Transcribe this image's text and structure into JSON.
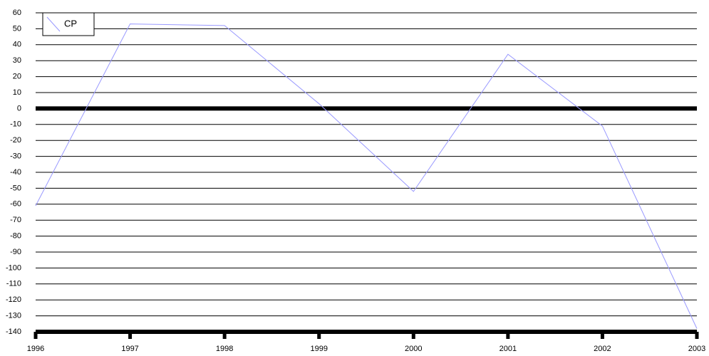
{
  "chart_data": {
    "type": "line",
    "x": [
      1996,
      1997,
      1998,
      1999,
      2000,
      2001,
      2002,
      2003
    ],
    "series": [
      {
        "name": "CP",
        "color": "#9999ff",
        "values": [
          -61,
          53,
          52,
          3,
          -52,
          34,
          -11,
          -138
        ]
      }
    ],
    "xlim": [
      1996,
      2003
    ],
    "xticks": [
      1996,
      1997,
      1998,
      1999,
      2000,
      2001,
      2002,
      2003
    ],
    "ylim": [
      -140,
      60
    ],
    "yticks": [
      60,
      50,
      40,
      30,
      20,
      10,
      0,
      -10,
      -20,
      -30,
      -40,
      -50,
      -60,
      -70,
      -80,
      -90,
      -100,
      -110,
      -120,
      -130,
      -140
    ],
    "grid": true,
    "legend": "top-left"
  }
}
